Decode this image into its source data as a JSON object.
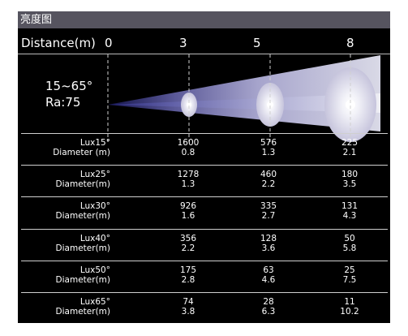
{
  "title": "亮度图",
  "header": {
    "distance_label": "Distance(m)",
    "distances": [
      "0",
      "3",
      "5",
      "8"
    ]
  },
  "beam": {
    "angle_range": "15~65°",
    "ra": "Ra:75"
  },
  "rows": [
    {
      "lux_label": "Lux15°",
      "diam_label": "Diameter (m)",
      "lux": [
        "1600",
        "576",
        "225"
      ],
      "diameter": [
        "0.8",
        "1.3",
        "2.1"
      ]
    },
    {
      "lux_label": "Lux25°",
      "diam_label": "Diameter(m)",
      "lux": [
        "1278",
        "460",
        "180"
      ],
      "diameter": [
        "1.3",
        "2.2",
        "3.5"
      ]
    },
    {
      "lux_label": "Lux30°",
      "diam_label": "Diameter(m)",
      "lux": [
        "926",
        "335",
        "131"
      ],
      "diameter": [
        "1.6",
        "2.7",
        "4.3"
      ]
    },
    {
      "lux_label": "Lux40°",
      "diam_label": "Diameter(m)",
      "lux": [
        "356",
        "128",
        "50"
      ],
      "diameter": [
        "2.2",
        "3.6",
        "5.8"
      ]
    },
    {
      "lux_label": "Lux50°",
      "diam_label": "Diameter(m)",
      "lux": [
        "175",
        "63",
        "25"
      ],
      "diameter": [
        "2.8",
        "4.6",
        "7.5"
      ]
    },
    {
      "lux_label": "Lux65°",
      "diam_label": "Diameter(m)",
      "lux": [
        "74",
        "28",
        "11"
      ],
      "diameter": [
        "3.8",
        "6.3",
        "10.2"
      ]
    }
  ]
}
